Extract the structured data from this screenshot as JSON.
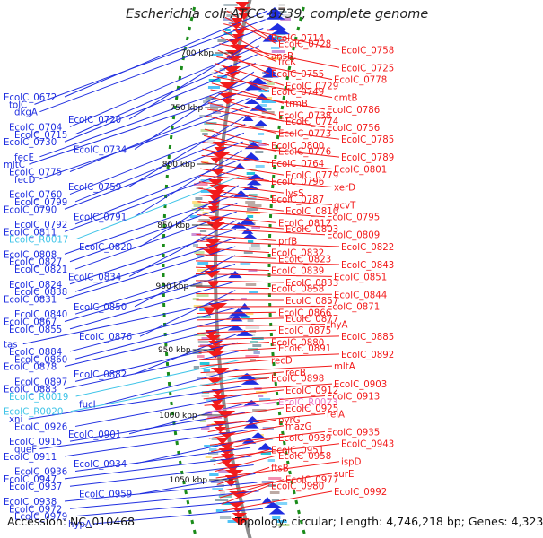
{
  "title": "Escherichia coli ATCC 8739, complete genome",
  "footer": {
    "accession": "Accession: NC_010468",
    "topology": "Topology: circular; Length: 4,746,218 bp; Genes: 4,323"
  },
  "colors": {
    "reverse_strand": "#1f2ee0",
    "forward_strand": "#f21b1b",
    "rna_reverse": "#3fc4e8",
    "rna_forward": "#ef7ac7",
    "backbone": "#8c8c8c",
    "gc_marks": "#1a8c1a"
  },
  "ticks": [
    "700 kbp",
    "750 kbp",
    "800 kbp",
    "850 kbp",
    "900 kbp",
    "950 kbp",
    "1000 kbp",
    "1050 kbp"
  ],
  "left_labels": [
    {
      "text": "EcolC_0672",
      "kind": "gene"
    },
    {
      "text": "tolC",
      "kind": "gene"
    },
    {
      "text": "dkgA",
      "kind": "gene"
    },
    {
      "text": "EcolC_0720",
      "kind": "gene"
    },
    {
      "text": "EcolC_0704",
      "kind": "gene"
    },
    {
      "text": "EcolC_0715",
      "kind": "gene"
    },
    {
      "text": "EcolC_0730",
      "kind": "gene"
    },
    {
      "text": "EcolC_0734",
      "kind": "gene"
    },
    {
      "text": "fecE",
      "kind": "gene"
    },
    {
      "text": "mltC",
      "kind": "gene"
    },
    {
      "text": "EcolC_0775",
      "kind": "gene"
    },
    {
      "text": "fecD",
      "kind": "gene"
    },
    {
      "text": "EcolC_0759",
      "kind": "gene"
    },
    {
      "text": "EcolC_0760",
      "kind": "gene"
    },
    {
      "text": "EcolC_0799",
      "kind": "gene"
    },
    {
      "text": "EcolC_0790",
      "kind": "gene"
    },
    {
      "text": "EcolC_0791",
      "kind": "gene"
    },
    {
      "text": "EcolC_0792",
      "kind": "gene"
    },
    {
      "text": "EcolC_0811",
      "kind": "gene"
    },
    {
      "text": "EcolC_R0017",
      "kind": "rna"
    },
    {
      "text": "EcolC_0820",
      "kind": "gene"
    },
    {
      "text": "EcolC_0808",
      "kind": "gene"
    },
    {
      "text": "EcolC_0827",
      "kind": "gene"
    },
    {
      "text": "EcolC_0821",
      "kind": "gene"
    },
    {
      "text": "EcolC_0834",
      "kind": "gene"
    },
    {
      "text": "EcolC_0824",
      "kind": "gene"
    },
    {
      "text": "EcolC_0838",
      "kind": "gene"
    },
    {
      "text": "EcolC_0831",
      "kind": "gene"
    },
    {
      "text": "EcolC_0850",
      "kind": "gene"
    },
    {
      "text": "EcolC_0840",
      "kind": "gene"
    },
    {
      "text": "EcolC_0867",
      "kind": "gene"
    },
    {
      "text": "EcolC_0855",
      "kind": "gene"
    },
    {
      "text": "EcolC_0876",
      "kind": "gene"
    },
    {
      "text": "tas",
      "kind": "gene"
    },
    {
      "text": "EcolC_0884",
      "kind": "gene"
    },
    {
      "text": "EcolC_0860",
      "kind": "gene"
    },
    {
      "text": "EcolC_0878",
      "kind": "gene"
    },
    {
      "text": "EcolC_0882",
      "kind": "gene"
    },
    {
      "text": "EcolC_0897",
      "kind": "gene"
    },
    {
      "text": "EcolC_0883",
      "kind": "gene"
    },
    {
      "text": "EcolC_R0019",
      "kind": "rna"
    },
    {
      "text": "fucI",
      "kind": "gene"
    },
    {
      "text": "EcolC_R0020",
      "kind": "rna"
    },
    {
      "text": "xni",
      "kind": "gene"
    },
    {
      "text": "EcolC_0926",
      "kind": "gene"
    },
    {
      "text": "EcolC_0901",
      "kind": "gene"
    },
    {
      "text": "EcolC_0915",
      "kind": "gene"
    },
    {
      "text": "queF",
      "kind": "gene"
    },
    {
      "text": "EcolC_0911",
      "kind": "gene"
    },
    {
      "text": "EcolC_0934",
      "kind": "gene"
    },
    {
      "text": "EcolC_0936",
      "kind": "gene"
    },
    {
      "text": "EcolC_0947",
      "kind": "gene"
    },
    {
      "text": "EcolC_0937",
      "kind": "gene"
    },
    {
      "text": "EcolC_0959",
      "kind": "gene"
    },
    {
      "text": "EcolC_0938",
      "kind": "gene"
    },
    {
      "text": "EcolC_0972",
      "kind": "gene"
    },
    {
      "text": "EcolC_0979",
      "kind": "gene"
    },
    {
      "text": "hypA",
      "kind": "gene"
    }
  ],
  "right_labels": [
    {
      "text": "EcolC_0714",
      "kind": "gene"
    },
    {
      "text": "EcolC_0728",
      "kind": "gene"
    },
    {
      "text": "EcolC_0758",
      "kind": "gene"
    },
    {
      "text": "ansB",
      "kind": "gene"
    },
    {
      "text": "frcK",
      "kind": "gene"
    },
    {
      "text": "EcolC_0725",
      "kind": "gene"
    },
    {
      "text": "EcolC_0755",
      "kind": "gene"
    },
    {
      "text": "EcolC_0778",
      "kind": "gene"
    },
    {
      "text": "EcolC_0729",
      "kind": "gene"
    },
    {
      "text": "EcolC_0749",
      "kind": "gene"
    },
    {
      "text": "cmtB",
      "kind": "gene"
    },
    {
      "text": "trmB",
      "kind": "gene"
    },
    {
      "text": "EcolC_0786",
      "kind": "gene"
    },
    {
      "text": "EcolC_0738",
      "kind": "gene"
    },
    {
      "text": "EcolC_0774",
      "kind": "gene"
    },
    {
      "text": "EcolC_0756",
      "kind": "gene"
    },
    {
      "text": "EcolC_0773",
      "kind": "gene"
    },
    {
      "text": "EcolC_0785",
      "kind": "gene"
    },
    {
      "text": "EcolC_0800",
      "kind": "gene"
    },
    {
      "text": "EcolC_0776",
      "kind": "gene"
    },
    {
      "text": "EcolC_0789",
      "kind": "gene"
    },
    {
      "text": "EcolC_0764",
      "kind": "gene"
    },
    {
      "text": "EcolC_0801",
      "kind": "gene"
    },
    {
      "text": "EcolC_0779",
      "kind": "gene"
    },
    {
      "text": "EcolC_0796",
      "kind": "gene"
    },
    {
      "text": "xerD",
      "kind": "gene"
    },
    {
      "text": "lysS",
      "kind": "gene"
    },
    {
      "text": "EcolC_0787",
      "kind": "gene"
    },
    {
      "text": "gcvT",
      "kind": "gene"
    },
    {
      "text": "EcolC_0810",
      "kind": "gene"
    },
    {
      "text": "EcolC_0795",
      "kind": "gene"
    },
    {
      "text": "EcolC_0812",
      "kind": "gene"
    },
    {
      "text": "EcolC_0803",
      "kind": "gene"
    },
    {
      "text": "EcolC_0809",
      "kind": "gene"
    },
    {
      "text": "prfB",
      "kind": "gene"
    },
    {
      "text": "EcolC_0822",
      "kind": "gene"
    },
    {
      "text": "EcolC_0832",
      "kind": "gene"
    },
    {
      "text": "EcolC_0823",
      "kind": "gene"
    },
    {
      "text": "EcolC_0843",
      "kind": "gene"
    },
    {
      "text": "EcolC_0839",
      "kind": "gene"
    },
    {
      "text": "EcolC_0851",
      "kind": "gene"
    },
    {
      "text": "EcolC_0833",
      "kind": "gene"
    },
    {
      "text": "EcolC_0858",
      "kind": "gene"
    },
    {
      "text": "EcolC_0844",
      "kind": "gene"
    },
    {
      "text": "EcolC_0857",
      "kind": "gene"
    },
    {
      "text": "EcolC_0871",
      "kind": "gene"
    },
    {
      "text": "EcolC_0866",
      "kind": "gene"
    },
    {
      "text": "EcolC_0877",
      "kind": "gene"
    },
    {
      "text": "thyA",
      "kind": "gene"
    },
    {
      "text": "EcolC_0875",
      "kind": "gene"
    },
    {
      "text": "EcolC_0885",
      "kind": "gene"
    },
    {
      "text": "EcolC_0880",
      "kind": "gene"
    },
    {
      "text": "EcolC_0891",
      "kind": "gene"
    },
    {
      "text": "EcolC_0892",
      "kind": "gene"
    },
    {
      "text": "recD",
      "kind": "gene"
    },
    {
      "text": "mltA",
      "kind": "gene"
    },
    {
      "text": "recB",
      "kind": "gene"
    },
    {
      "text": "EcolC_0898",
      "kind": "gene"
    },
    {
      "text": "EcolC_0903",
      "kind": "gene"
    },
    {
      "text": "EcolC_0912",
      "kind": "gene"
    },
    {
      "text": "EcolC_0913",
      "kind": "gene"
    },
    {
      "text": "EcolC_R0023",
      "kind": "rna"
    },
    {
      "text": "EcolC_0925",
      "kind": "gene"
    },
    {
      "text": "relA",
      "kind": "gene"
    },
    {
      "text": "pyrG",
      "kind": "gene"
    },
    {
      "text": "mazG",
      "kind": "gene"
    },
    {
      "text": "EcolC_0935",
      "kind": "gene"
    },
    {
      "text": "EcolC_0939",
      "kind": "gene"
    },
    {
      "text": "EcolC_0943",
      "kind": "gene"
    },
    {
      "text": "EcolC_0951",
      "kind": "gene"
    },
    {
      "text": "EcolC_0958",
      "kind": "gene"
    },
    {
      "text": "ispD",
      "kind": "gene"
    },
    {
      "text": "ftsB",
      "kind": "gene"
    },
    {
      "text": "surE",
      "kind": "gene"
    },
    {
      "text": "EcolC_0977",
      "kind": "gene"
    },
    {
      "text": "EcolC_0980",
      "kind": "gene"
    },
    {
      "text": "EcolC_0992",
      "kind": "gene"
    }
  ]
}
